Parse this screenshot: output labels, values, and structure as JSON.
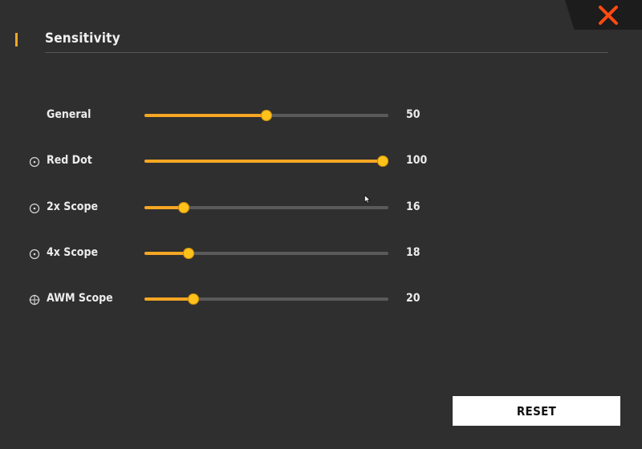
{
  "header": {
    "title": "Sensitivity"
  },
  "close": {
    "icon": "close-icon"
  },
  "sliders": [
    {
      "label": "General",
      "value": "50",
      "level": 0.5,
      "icon": ""
    },
    {
      "label": "Red Dot",
      "value": "100",
      "level": 1.0,
      "icon": "scope-dot-icon"
    },
    {
      "label": "2x Scope",
      "value": "16",
      "level": 0.16,
      "icon": "scope-dot-icon"
    },
    {
      "label": "4x Scope",
      "value": "18",
      "level": 0.18,
      "icon": "scope-dot-icon"
    },
    {
      "label": "AWM Scope",
      "value": "20",
      "level": 0.2,
      "icon": "crosshair-icon"
    }
  ],
  "footer": {
    "reset_label": "RESET"
  },
  "colors": {
    "accent": "#f5a623",
    "thumb": "#ffc21a",
    "close": "#ff4a12",
    "track": "#5a5a5a"
  }
}
